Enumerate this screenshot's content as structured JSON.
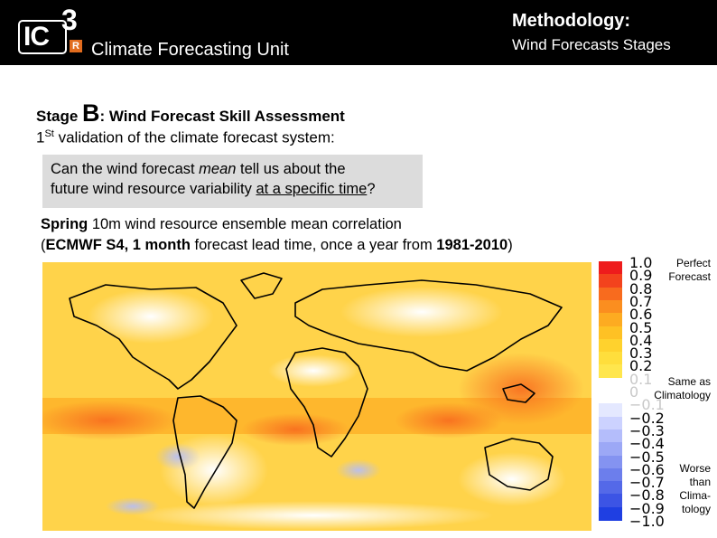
{
  "header": {
    "logo_main": "IC",
    "logo_sup": "3",
    "logo_badge": "R",
    "unit_name": "Climate Forecasting Unit",
    "method_title": "Methodology:",
    "method_sub": "Wind Forecasts Stages",
    "background": "#000000"
  },
  "stage": {
    "prefix": "Stage ",
    "letter": "B",
    "title": ": Wind Forecast Skill Assessment"
  },
  "validation": {
    "num": "1",
    "sup": "St",
    "rest": " validation of the climate forecast system:"
  },
  "question": {
    "part1": "Can the wind forecast ",
    "em": "mean",
    "part2": " tell us about the",
    "part3": "future wind resource variability ",
    "underline": "at a specific time",
    "part4": "?"
  },
  "description": {
    "season": "Spring",
    "line1_rest": " 10m wind resource ensemble mean correlation",
    "open": "(",
    "model": "ECMWF S4, 1 month",
    "mid": " forecast lead time, once a year from ",
    "period": "1981-2010",
    "close": ")"
  },
  "colorbar": {
    "ticks": [
      "1.0",
      "0.9",
      "0.8",
      "0.7",
      "0.6",
      "0.5",
      "0.4",
      "0.3",
      "0.2",
      "0.1",
      "0",
      "−0.1",
      "−0.2",
      "−0.3",
      "−0.4",
      "−0.5",
      "−0.6",
      "−0.7",
      "−0.8",
      "−0.9",
      "−1.0"
    ],
    "colors": [
      "#ee1c1c",
      "#f3431d",
      "#f86b1e",
      "#fb8e1f",
      "#fdab21",
      "#fec124",
      "#ffd22d",
      "#ffde3c",
      "#ffe64d",
      "#ffffff",
      "#ffffff",
      "#e4e8ff",
      "#ccd2ff",
      "#b4bdfb",
      "#9ca8f6",
      "#8493f1",
      "#6c7eec",
      "#5469e8",
      "#3c54e5",
      "#1f3fe2"
    ],
    "annotations": {
      "perfect": "Perfect\nForecast",
      "same": "Same as\nClimatology",
      "worse": "Worse\nthan\nClima-\ntology"
    }
  }
}
